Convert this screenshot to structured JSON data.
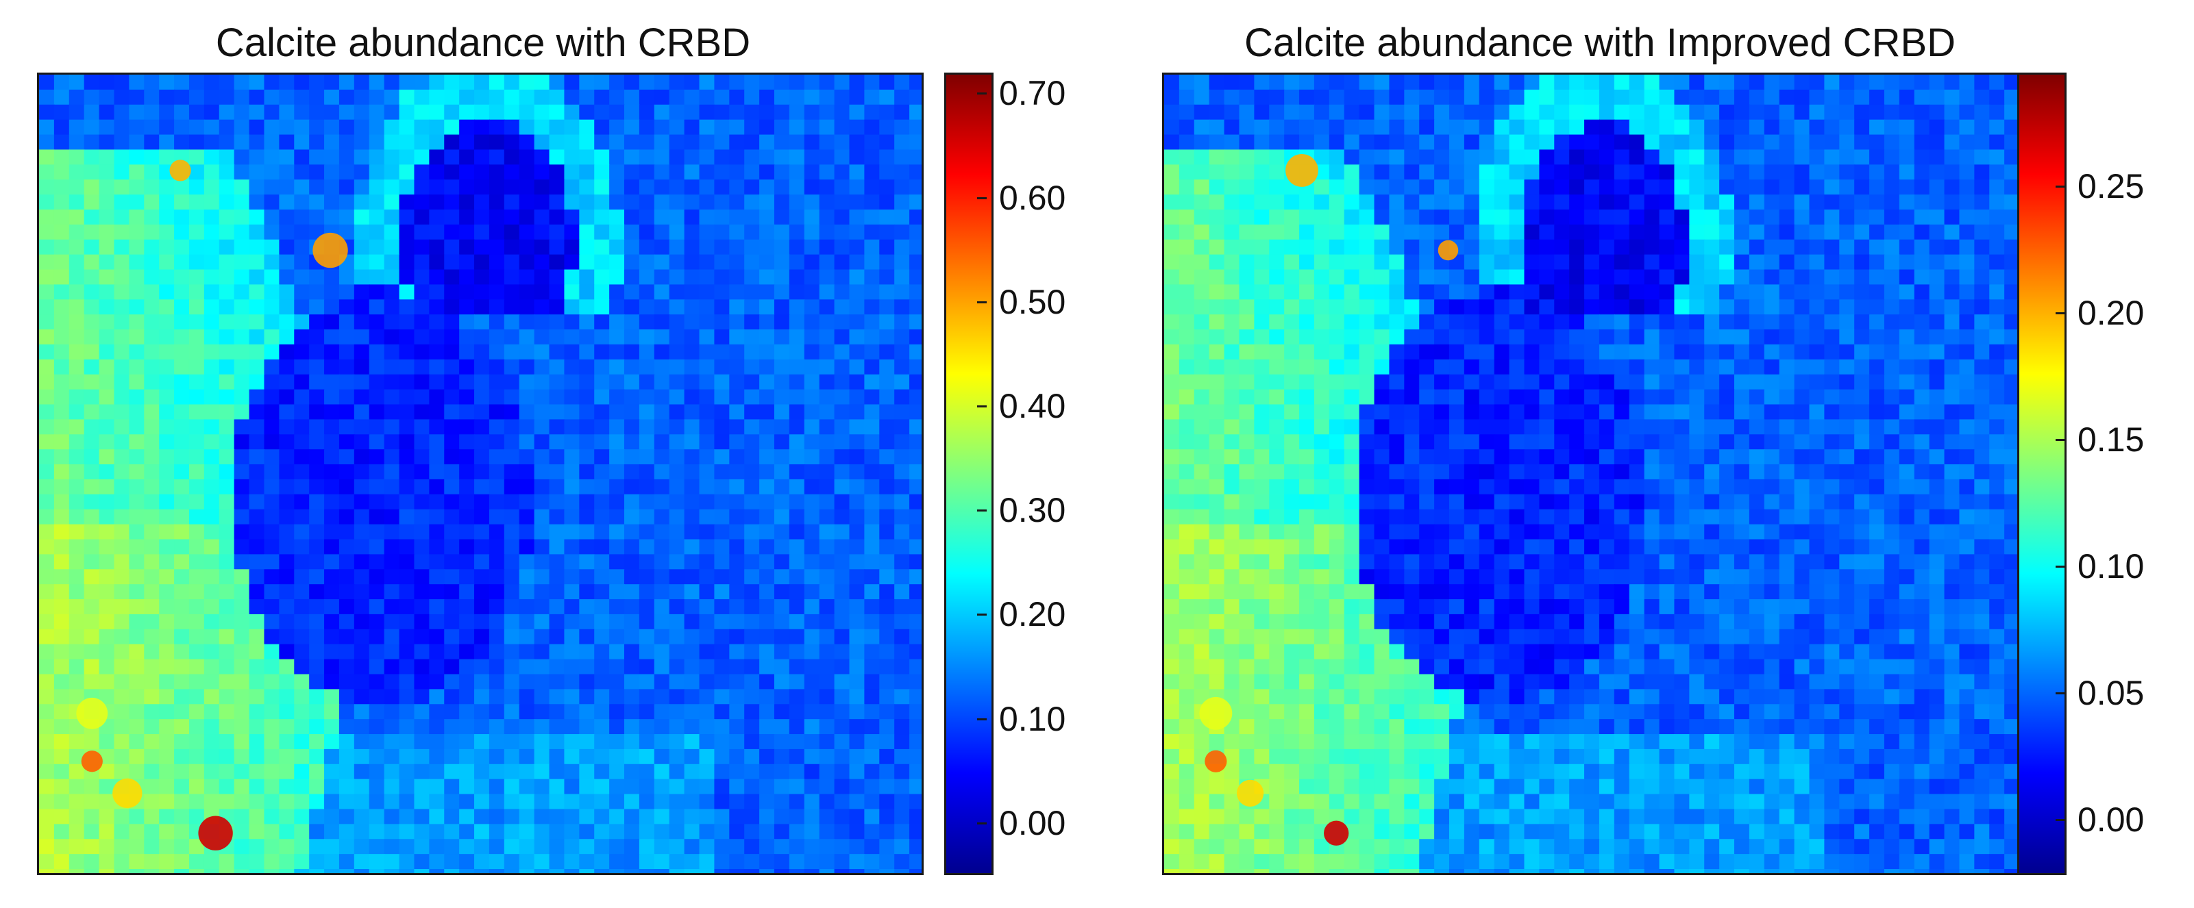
{
  "panels": [
    {
      "title": "Calcite abundance with CRBD",
      "colorbar": {
        "min": -0.05,
        "max": 0.72,
        "ticks": [
          "0.70",
          "0.60",
          "0.50",
          "0.40",
          "0.30",
          "0.20",
          "0.10",
          "0.00"
        ]
      }
    },
    {
      "title": "Calcite abundance with Improved CRBD",
      "colorbar": {
        "min": -0.022,
        "max": 0.295,
        "ticks": [
          "0.25",
          "0.20",
          "0.15",
          "0.10",
          "0.05",
          "0.00"
        ]
      }
    }
  ],
  "colormap": "jet",
  "colors": {
    "jet": [
      "#00008f",
      "#0000ff",
      "#007fff",
      "#00ffff",
      "#7fff7f",
      "#ffff00",
      "#ff7f00",
      "#ff0000",
      "#800000"
    ]
  }
}
